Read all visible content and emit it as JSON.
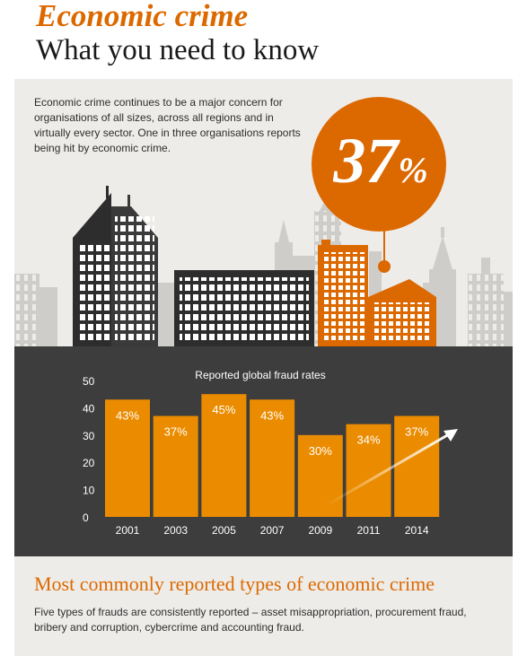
{
  "header": {
    "title": "Economic crime",
    "subtitle": "What you need to know"
  },
  "intro": {
    "text": "Economic crime continues to be a major concern for organisations of all sizes, across all regions and in virtually every sector. One in three organisations reports being hit by economic crime."
  },
  "highlight": {
    "value": "37",
    "unit": "%"
  },
  "colors": {
    "accent": "#dc6900",
    "bar": "#eb8c00",
    "dark": "#3d3d3d",
    "background": "#eeece9"
  },
  "chart_data": {
    "type": "bar",
    "title": "Reported global fraud rates",
    "categories": [
      "2001",
      "2003",
      "2005",
      "2007",
      "2009",
      "2011",
      "2014"
    ],
    "values": [
      43,
      37,
      45,
      43,
      30,
      34,
      37
    ],
    "data_labels": [
      "43%",
      "37%",
      "45%",
      "43%",
      "30%",
      "34%",
      "37%"
    ],
    "y_ticks": [
      "0",
      "10",
      "20",
      "30",
      "40",
      "50"
    ],
    "ylim": [
      0,
      50
    ],
    "grid": false,
    "xlabel": "",
    "ylabel": ""
  },
  "section": {
    "title": "Most commonly reported types of economic crime",
    "text": "Five types of frauds are consistently reported – asset misappropriation, procurement fraud, bribery and corruption, cybercrime and accounting fraud."
  }
}
